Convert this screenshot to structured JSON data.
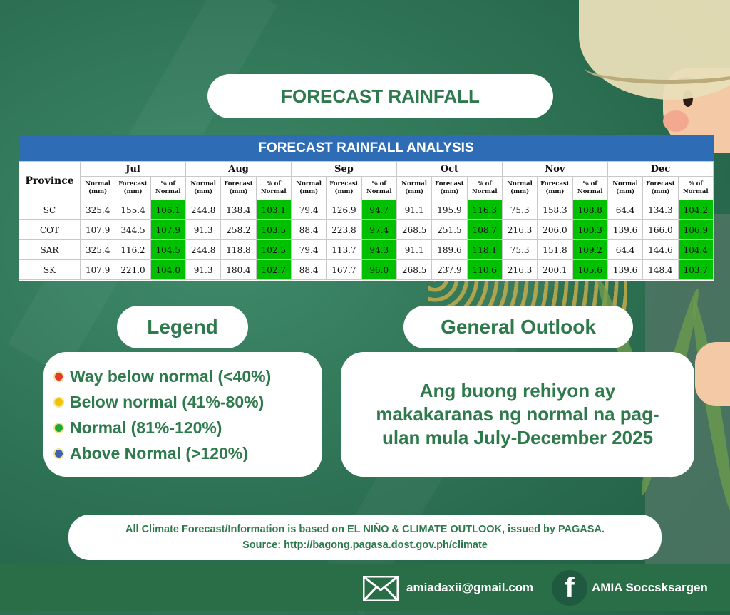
{
  "title": "FORECAST RAINFALL",
  "table": {
    "banner": "FORECAST RAINFALL ANALYSIS",
    "province_header": "Province",
    "months": [
      "Jul",
      "Aug",
      "Sep",
      "Oct",
      "Nov",
      "Dec"
    ],
    "sub_headers": [
      "Normal (mm)",
      "Forecast (mm)",
      "% of Normal"
    ],
    "rows": [
      {
        "province": "SC",
        "values": [
          "325.4",
          "155.4",
          "106.1",
          "244.8",
          "138.4",
          "103.1",
          "79.4",
          "126.9",
          "94.7",
          "91.1",
          "195.9",
          "116.3",
          "75.3",
          "158.3",
          "108.8",
          "64.4",
          "134.3",
          "104.2"
        ]
      },
      {
        "province": "COT",
        "values": [
          "107.9",
          "344.5",
          "107.9",
          "91.3",
          "258.2",
          "103.5",
          "88.4",
          "223.8",
          "97.4",
          "268.5",
          "251.5",
          "108.7",
          "216.3",
          "206.0",
          "100.3",
          "139.6",
          "166.0",
          "106.9"
        ]
      },
      {
        "province": "SAR",
        "values": [
          "325.4",
          "116.2",
          "104.5",
          "244.8",
          "118.8",
          "102.5",
          "79.4",
          "113.7",
          "94.3",
          "91.1",
          "189.6",
          "118.1",
          "75.3",
          "151.8",
          "109.2",
          "64.4",
          "144.6",
          "104.4"
        ]
      },
      {
        "province": "SK",
        "values": [
          "107.9",
          "221.0",
          "104.0",
          "91.3",
          "180.4",
          "102.7",
          "88.4",
          "167.7",
          "96.0",
          "268.5",
          "237.9",
          "110.6",
          "216.3",
          "200.1",
          "105.6",
          "139.6",
          "148.4",
          "103.7"
        ]
      }
    ],
    "colors": {
      "banner": "#2e6db6",
      "normal_highlight": "#00c000"
    }
  },
  "legend": {
    "title": "Legend",
    "items": [
      {
        "label": "Way below normal (<40%)",
        "color": "#e53935"
      },
      {
        "label": "Below normal (41%-80%)",
        "color": "#f2c200"
      },
      {
        "label": "Normal (81%-120%)",
        "color": "#1fa83a"
      },
      {
        "label": "Above Normal (>120%)",
        "color": "#3f5fb5"
      }
    ]
  },
  "outlook": {
    "title": "General Outlook",
    "text": "Ang buong rehiyon ay makakaranas ng normal na pag-ulan mula July-December 2025"
  },
  "note": {
    "line1": "All Climate Forecast/Information is based on EL NIÑO & CLIMATE OUTLOOK, issued by PAGASA.",
    "line2": "Source: http://bagong.pagasa.dost.gov.ph/climate"
  },
  "footer": {
    "email": "amiadaxii@gmail.com",
    "email_icon": "envelope-icon",
    "facebook": "AMIA Soccsksargen",
    "facebook_icon": "facebook-icon"
  }
}
